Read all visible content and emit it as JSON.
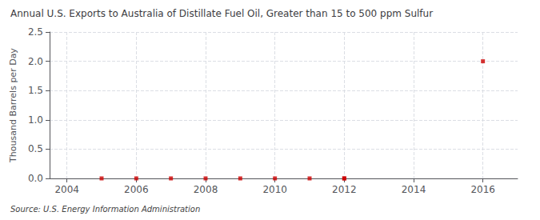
{
  "chart_data": {
    "type": "scatter",
    "title": "Annual U.S. Exports to Australia of Distillate Fuel Oil, Greater than 15 to 500 ppm Sulfur",
    "ylabel": "Thousand Barrels per Day",
    "source": "Source: U.S. Energy Information Administration",
    "x": [
      2005,
      2006,
      2007,
      2008,
      2009,
      2010,
      2011,
      2012,
      2012,
      2016
    ],
    "values": [
      0,
      0,
      0,
      0,
      0,
      0,
      0,
      0,
      0,
      2.0
    ],
    "color": "#cc0000",
    "marker": "square",
    "xlim": [
      2003.5,
      2017.0
    ],
    "xticks": [
      2004,
      2006,
      2008,
      2010,
      2012,
      2014,
      2016
    ],
    "ylim": [
      0,
      2.5
    ],
    "yticks": [
      {
        "value": 0.0,
        "label": "0.0"
      },
      0.5,
      {
        "value": 1.0,
        "label": "1.0"
      },
      1.5,
      {
        "value": 2.0,
        "label": "2.0"
      },
      2.5
    ],
    "grid": true
  }
}
